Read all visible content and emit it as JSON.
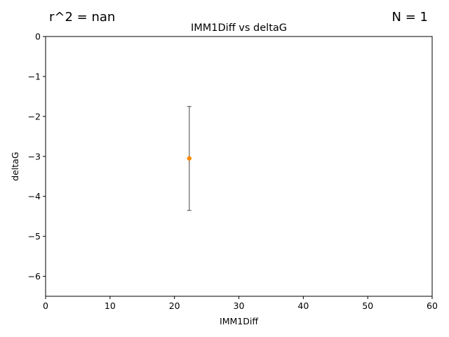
{
  "annotations": {
    "r2": "r^2 = nan",
    "n": "N = 1"
  },
  "chart_data": {
    "type": "scatter",
    "title": "IMM1Diff vs deltaG",
    "xlabel": "IMM1Diff",
    "ylabel": "deltaG",
    "xlim": [
      0,
      60
    ],
    "ylim": [
      -6.5,
      0
    ],
    "xticks": [
      0,
      10,
      20,
      30,
      40,
      50,
      60
    ],
    "xtick_labels": [
      "0",
      "10",
      "20",
      "30",
      "40",
      "50",
      "60"
    ],
    "yticks": [
      0,
      -1,
      -2,
      -3,
      -4,
      -5,
      -6
    ],
    "ytick_labels": [
      "0",
      "−1",
      "−2",
      "−3",
      "−4",
      "−5",
      "−6"
    ],
    "grid": false,
    "points": [
      {
        "x": 22.3,
        "y": -3.05,
        "yerr_low": -4.35,
        "yerr_high": -1.75
      }
    ],
    "colors": {
      "point": "#ff8c00",
      "errorbar": "#6e6e6e",
      "axis": "#000000"
    }
  }
}
